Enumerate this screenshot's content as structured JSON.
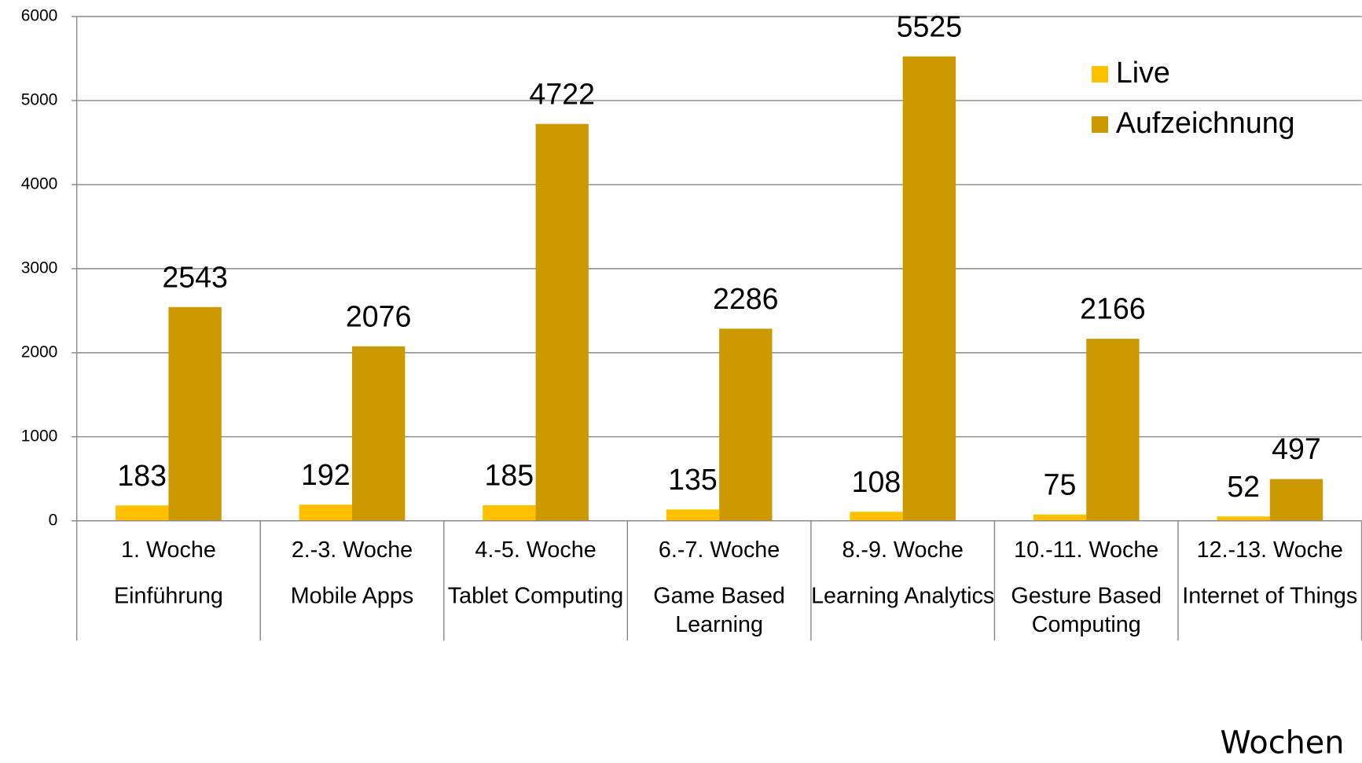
{
  "chart_data": {
    "type": "bar",
    "categories": [
      "1. Woche",
      "2.-3. Woche",
      "4.-5. Woche",
      "6.-7. Woche",
      "8.-9. Woche",
      "10.-11. Woche",
      "12.-13. Woche"
    ],
    "subcategories": [
      "Einführung",
      "Mobile Apps",
      "Tablet Computing",
      "Game Based Learning",
      "Learning Analytics",
      "Gesture Based Computing",
      "Internet of Things"
    ],
    "series": [
      {
        "name": "Live",
        "color": "#ffc000",
        "values": [
          183,
          192,
          185,
          135,
          108,
          75,
          52
        ]
      },
      {
        "name": "Aufzeichnung",
        "color": "#cc9900",
        "values": [
          2543,
          2076,
          4722,
          2286,
          5525,
          2166,
          497
        ]
      }
    ],
    "x_label": "Wochen",
    "ylim": [
      0,
      6000
    ],
    "yticks": [
      0,
      1000,
      2000,
      3000,
      4000,
      5000,
      6000
    ],
    "grid": true,
    "legend": "upper right"
  }
}
